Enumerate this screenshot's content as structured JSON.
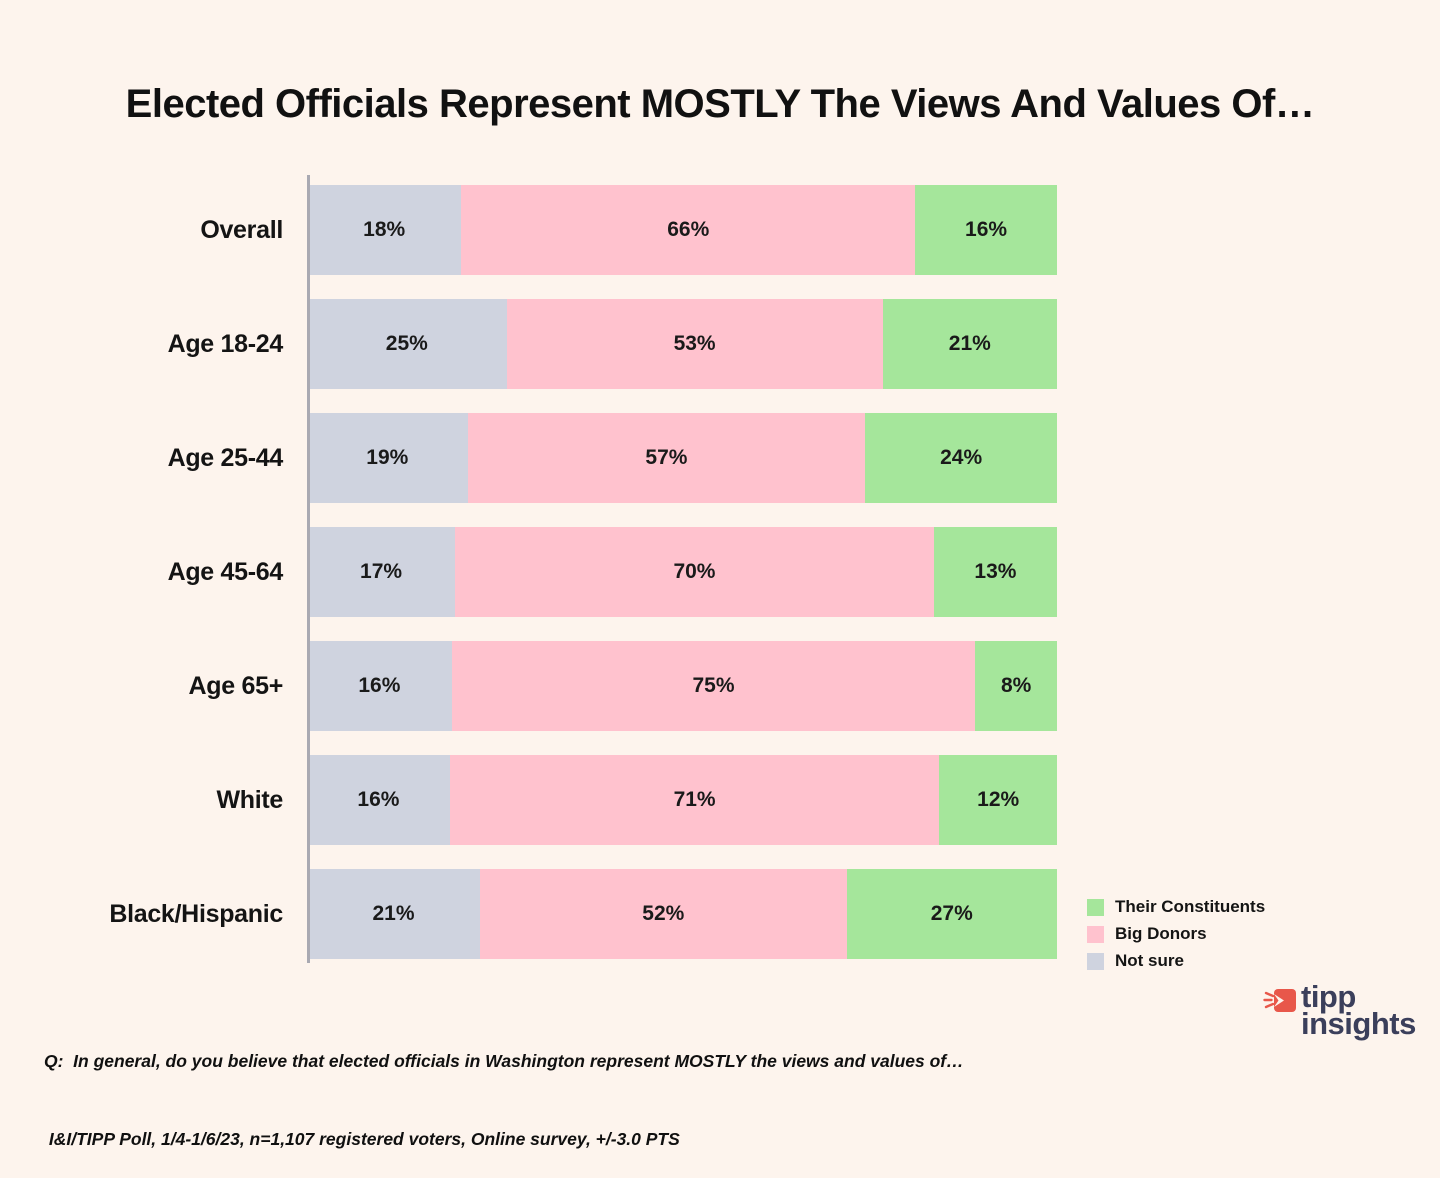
{
  "title": "Elected Officials Represent MOSTLY The Views And Values Of…",
  "colors": {
    "background": "#FDF4ED",
    "constituents": "#A5E69B",
    "big_donors": "#FFC2CE",
    "not_sure": "#CFD3DF",
    "axis": "#A9A9B2",
    "logo_navy": "#3B3F5B",
    "logo_red": "#E8574A"
  },
  "chart_data": {
    "type": "bar",
    "orientation": "horizontal",
    "stacked": true,
    "title": "Elected Officials Represent MOSTLY The Views And Values Of…",
    "categories": [
      "Overall",
      "Age 18-24",
      "Age 25-44",
      "Age 45-64",
      "Age 65+",
      "White",
      "Black/Hispanic"
    ],
    "series": [
      {
        "name": "Not sure",
        "color_key": "not_sure",
        "values": [
          18,
          25,
          19,
          17,
          16,
          16,
          21
        ]
      },
      {
        "name": "Big Donors",
        "color_key": "big_donors",
        "values": [
          66,
          53,
          57,
          70,
          75,
          71,
          52
        ]
      },
      {
        "name": "Their Constituents",
        "color_key": "constituents",
        "values": [
          16,
          21,
          24,
          13,
          8,
          12,
          27
        ]
      }
    ],
    "value_suffix": "%",
    "xlim": [
      0,
      100
    ],
    "grid": false,
    "legend_position": "bottom-right",
    "legend": [
      {
        "label": "Their Constituents",
        "color_key": "constituents"
      },
      {
        "label": "Big Donors",
        "color_key": "big_donors"
      },
      {
        "label": "Not sure",
        "color_key": "not_sure"
      }
    ]
  },
  "footer": {
    "question": "Q:  In general, do you believe that elected officials in Washington represent MOSTLY the views and values of…",
    "source": " I&I/TIPP Poll, 1/4-1/6/23, n=1,107 registered voters, Online survey, +/-3.0 PTS"
  },
  "logo": {
    "line1": "tipp",
    "line2": "insights"
  }
}
